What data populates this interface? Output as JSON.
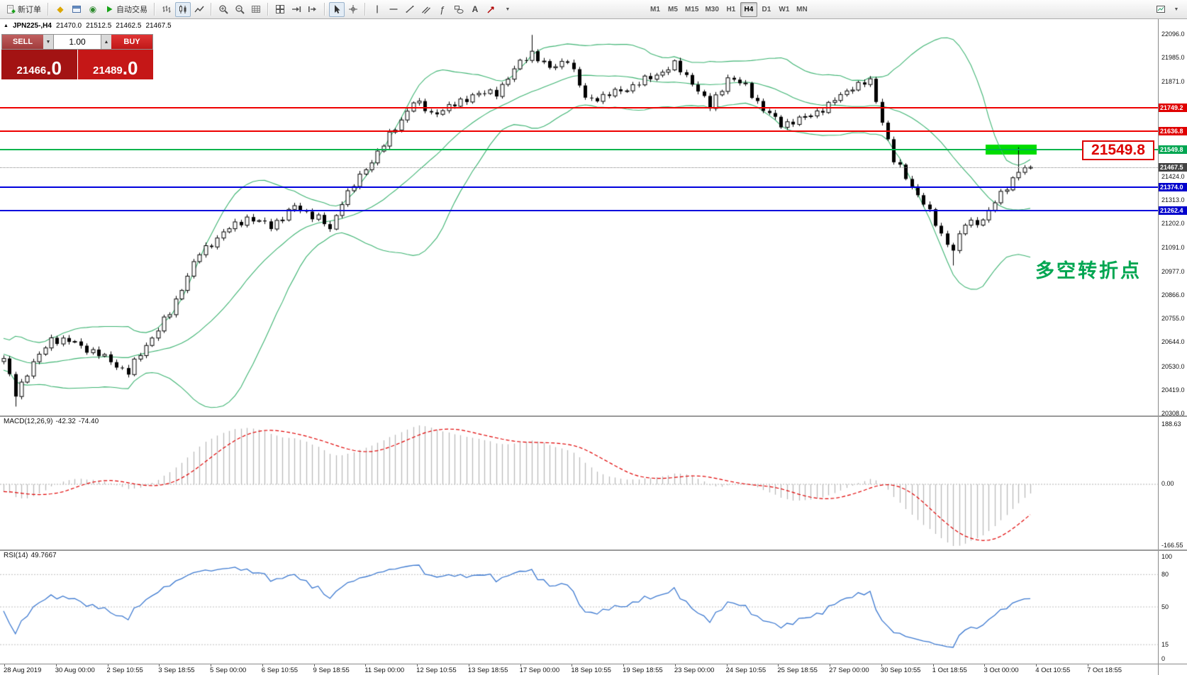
{
  "glyphs": {
    "up_triangle": "▲",
    "down_triangle": "▼"
  },
  "toolbar": {
    "groups": [
      {
        "items": [
          {
            "name": "new-order-button",
            "icon": "doc-plus",
            "label": "新订单"
          }
        ]
      },
      {
        "items": [
          {
            "name": "metaeditor-button",
            "icon": "diamond-yellow"
          },
          {
            "name": "market-watch-button",
            "icon": "window-blue"
          },
          {
            "name": "strategy-tester-button",
            "icon": "target-green"
          },
          {
            "name": "auto-trading-button",
            "icon": "play-green",
            "label": "自动交易"
          }
        ]
      },
      {
        "items": [
          {
            "name": "bar-chart-button",
            "icon": "bars"
          },
          {
            "name": "candlestick-button",
            "icon": "candles",
            "active": true
          },
          {
            "name": "line-chart-button",
            "icon": "line"
          }
        ]
      },
      {
        "items": [
          {
            "name": "zoom-in-button",
            "icon": "zoom-in"
          },
          {
            "name": "zoom-out-button",
            "icon": "zoom-out"
          },
          {
            "name": "grid-button",
            "icon": "grid"
          }
        ]
      },
      {
        "items": [
          {
            "name": "tile-windows-button",
            "icon": "tile"
          },
          {
            "name": "auto-scroll-button",
            "icon": "auto-scroll"
          },
          {
            "name": "chart-shift-button",
            "icon": "chart-shift"
          }
        ]
      },
      {
        "items": [
          {
            "name": "cursor-button",
            "icon": "cursor",
            "active": true
          },
          {
            "name": "crosshair-button",
            "icon": "crosshair"
          }
        ]
      },
      {
        "items": [
          {
            "name": "vertical-line-button",
            "icon": "vline"
          },
          {
            "name": "horizontal-line-button",
            "icon": "hline"
          },
          {
            "name": "trendline-button",
            "icon": "trend"
          },
          {
            "name": "channel-button",
            "icon": "channel"
          },
          {
            "name": "fibonacci-button",
            "icon": "fibo"
          },
          {
            "name": "shapes-button",
            "icon": "shapes"
          },
          {
            "name": "text-button",
            "icon": "text"
          },
          {
            "name": "arrows-button",
            "icon": "arrows"
          },
          {
            "name": "objects-dropdown-button",
            "icon": "dropdown"
          }
        ]
      }
    ],
    "timeframes": [
      "M1",
      "M5",
      "M15",
      "M30",
      "H1",
      "H4",
      "D1",
      "W1",
      "MN"
    ],
    "active_timeframe": "H4",
    "right_icons": [
      {
        "name": "new-chart-button",
        "icon": "chart-window"
      },
      {
        "name": "profiles-button",
        "icon": "dropdown"
      }
    ]
  },
  "symbol_bar": {
    "symbol": "JPN225-,H4",
    "open": "21470.0",
    "high": "21512.5",
    "low": "21462.5",
    "close": "21467.5"
  },
  "trade_panel": {
    "sell_label": "SELL",
    "buy_label": "BUY",
    "volume": "1.00",
    "sell_price_int": "21466",
    "sell_price_dec": ".0",
    "buy_price_int": "21489",
    "buy_price_dec": ".0"
  },
  "price_axis": {
    "labels": [
      22096.0,
      21985.0,
      21871.0,
      21424.0,
      21313.0,
      21202.0,
      21091.0,
      20977.0,
      20866.0,
      20755.0,
      20644.0,
      20530.0,
      20419.0,
      20308.0
    ]
  },
  "hlines": [
    {
      "price": 21749.2,
      "color": "#ee0000",
      "tag_bg": "#e00000",
      "label": "21749.2"
    },
    {
      "price": 21636.8,
      "color": "#ee0000",
      "tag_bg": "#e00000",
      "label": "21636.8"
    },
    {
      "price": 21549.8,
      "color": "#00b44c",
      "tag_bg": "#00a651",
      "label": "21549.8"
    },
    {
      "price": 21374.0,
      "color": "#0000dd",
      "tag_bg": "#0000cc",
      "label": "21374.0"
    },
    {
      "price": 21262.4,
      "color": "#0000dd",
      "tag_bg": "#0000cc",
      "label": "21262.4"
    }
  ],
  "current_price": {
    "price": 21467.5,
    "label": "21467.5",
    "tag_bg": "#444444"
  },
  "callout": {
    "text": "21549.8",
    "color": "#dd0000"
  },
  "annotation": {
    "text": "多空转折点",
    "color": "#00a651"
  },
  "indicators": {
    "macd": {
      "label": "MACD(12,26,9)",
      "value1": "-42.32",
      "value2": "-74.40",
      "axis_top": "188.63",
      "axis_zero": "0.00",
      "axis_bottom": "-166.55"
    },
    "rsi": {
      "label": "RSI(14)",
      "value": "49.7667",
      "axis": [
        100,
        80,
        50,
        15,
        0
      ],
      "levels": [
        80,
        50,
        15
      ]
    }
  },
  "dates": [
    "28 Aug 2019",
    "30 Aug 00:00",
    "2 Sep 10:55",
    "3 Sep 18:55",
    "5 Sep 00:00",
    "6 Sep 10:55",
    "9 Sep 18:55",
    "11 Sep 00:00",
    "12 Sep 10:55",
    "13 Sep 18:55",
    "17 Sep 00:00",
    "18 Sep 10:55",
    "19 Sep 18:55",
    "23 Sep 00:00",
    "24 Sep 10:55",
    "25 Sep 18:55",
    "27 Sep 00:00",
    "30 Sep 10:55",
    "1 Oct 18:55",
    "3 Oct 00:00",
    "4 Oct 10:55",
    "7 Oct 18:55"
  ],
  "chart_data": {
    "type": "candlestick",
    "symbol": "JPN225-",
    "timeframe": "H4",
    "visible_candles": 174,
    "warmup": 30,
    "y_axis_range": [
      20308,
      22096
    ],
    "price_keyframes": [
      [
        -30,
        20620
      ],
      [
        -20,
        20680
      ],
      [
        -10,
        20560
      ],
      [
        0,
        20560
      ],
      [
        2,
        20400
      ],
      [
        4,
        20500
      ],
      [
        8,
        20660
      ],
      [
        12,
        20640
      ],
      [
        17,
        20570
      ],
      [
        21,
        20500
      ],
      [
        24,
        20630
      ],
      [
        28,
        20780
      ],
      [
        31,
        20960
      ],
      [
        33,
        21060
      ],
      [
        37,
        21160
      ],
      [
        41,
        21230
      ],
      [
        45,
        21190
      ],
      [
        49,
        21280
      ],
      [
        53,
        21230
      ],
      [
        55,
        21170
      ],
      [
        57,
        21310
      ],
      [
        60,
        21420
      ],
      [
        63,
        21540
      ],
      [
        66,
        21650
      ],
      [
        69,
        21780
      ],
      [
        72,
        21720
      ],
      [
        76,
        21760
      ],
      [
        79,
        21810
      ],
      [
        83,
        21820
      ],
      [
        87,
        21960
      ],
      [
        89,
        22010
      ],
      [
        92,
        21930
      ],
      [
        95,
        21980
      ],
      [
        98,
        21790
      ],
      [
        101,
        21800
      ],
      [
        105,
        21840
      ],
      [
        109,
        21890
      ],
      [
        113,
        21950
      ],
      [
        116,
        21870
      ],
      [
        119,
        21750
      ],
      [
        122,
        21890
      ],
      [
        125,
        21850
      ],
      [
        128,
        21740
      ],
      [
        131,
        21670
      ],
      [
        135,
        21700
      ],
      [
        139,
        21760
      ],
      [
        143,
        21850
      ],
      [
        146,
        21870
      ],
      [
        148,
        21690
      ],
      [
        150,
        21500
      ],
      [
        152,
        21420
      ],
      [
        155,
        21300
      ],
      [
        158,
        21150
      ],
      [
        160,
        21080
      ],
      [
        162,
        21200
      ],
      [
        165,
        21220
      ],
      [
        167,
        21300
      ],
      [
        169,
        21380
      ],
      [
        171,
        21450
      ],
      [
        173,
        21467.5
      ]
    ],
    "extremes": [
      {
        "index": 2,
        "type": "low",
        "value": 20340
      },
      {
        "index": 89,
        "type": "high",
        "value": 22092
      },
      {
        "index": 160,
        "type": "low",
        "value": 21005
      },
      {
        "index": 171,
        "type": "high",
        "value": 21562
      }
    ],
    "bollinger": {
      "period": 20,
      "deviation": 2
    },
    "macd": {
      "fast": 12,
      "slow": 26,
      "signal": 9
    },
    "rsi": {
      "period": 14
    }
  }
}
